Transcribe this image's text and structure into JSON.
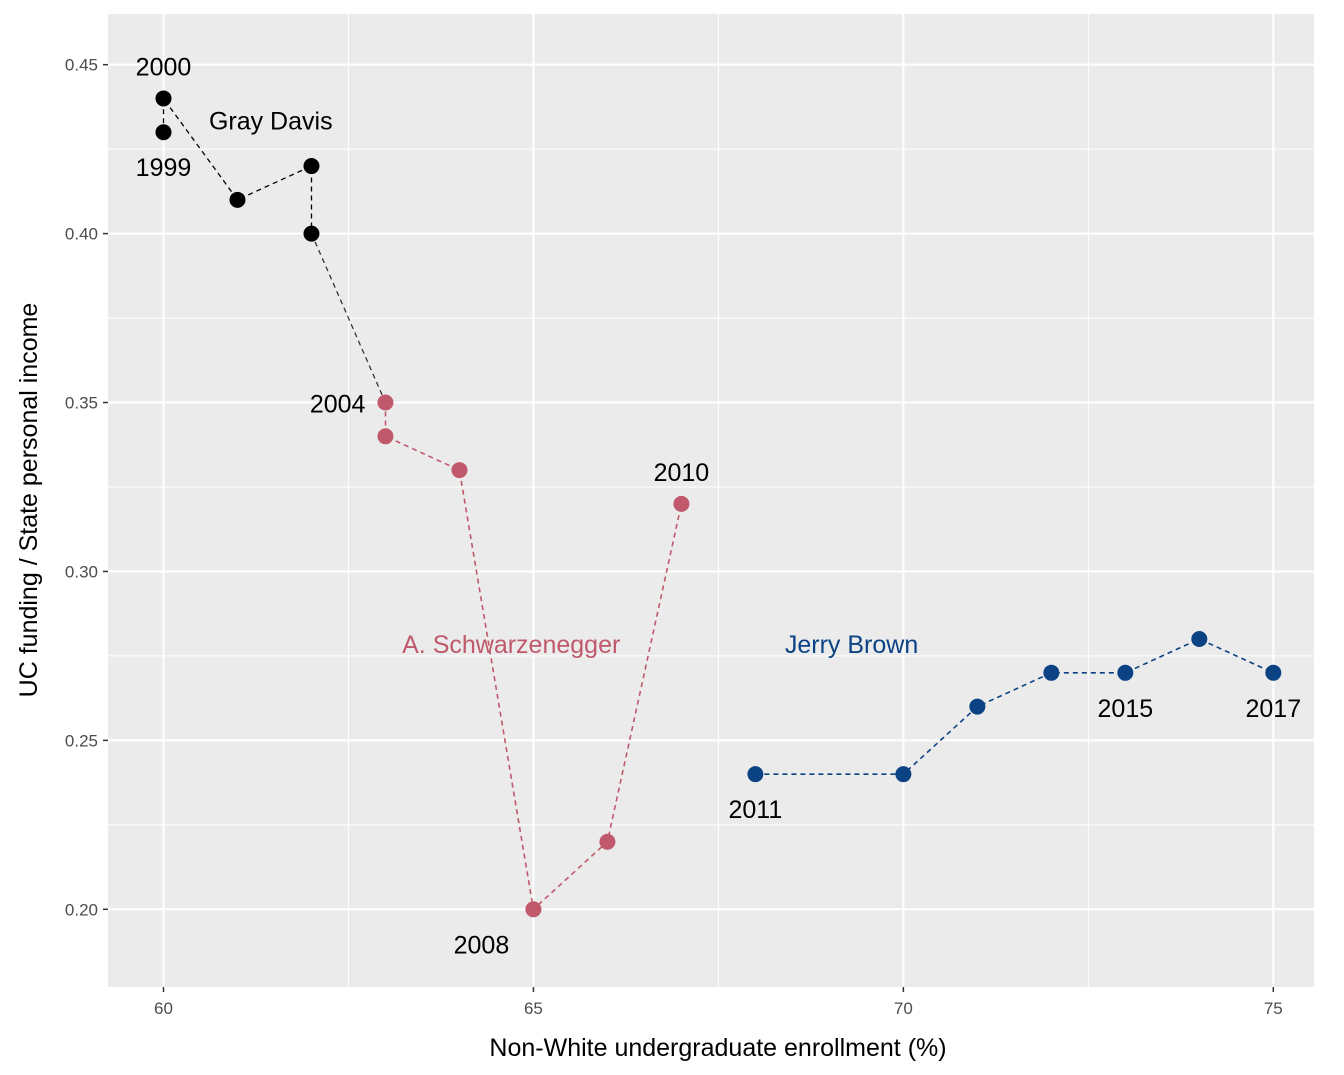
{
  "chart_data": {
    "type": "scatter",
    "title": "",
    "xlabel": "Non-White undergraduate enrollment (%)",
    "ylabel": "UC funding / State  personal income",
    "xlim": [
      59.25,
      75.55
    ],
    "ylim": [
      0.177,
      0.465
    ],
    "x_ticks": [
      60,
      65,
      70,
      75
    ],
    "x_tick_labels": [
      "60",
      "65",
      "70",
      "75"
    ],
    "y_ticks": [
      0.2,
      0.25,
      0.3,
      0.35,
      0.4,
      0.45
    ],
    "y_tick_labels": [
      "0.20",
      "0.25",
      "0.30",
      "0.35",
      "0.40",
      "0.45"
    ],
    "grid": true,
    "legend": "none",
    "series": [
      {
        "name": "Gray Davis",
        "color": "#000000",
        "points": [
          {
            "x": 60,
            "y": 0.43
          },
          {
            "x": 60,
            "y": 0.44
          },
          {
            "x": 61,
            "y": 0.41
          },
          {
            "x": 62,
            "y": 0.42
          },
          {
            "x": 62,
            "y": 0.4
          }
        ]
      },
      {
        "name": "A. Schwarzenegger",
        "color": "#c0596b",
        "points": [
          {
            "x": 63,
            "y": 0.35
          },
          {
            "x": 63,
            "y": 0.34
          },
          {
            "x": 64,
            "y": 0.33
          },
          {
            "x": 65,
            "y": 0.2
          },
          {
            "x": 66,
            "y": 0.22
          },
          {
            "x": 67,
            "y": 0.32
          }
        ]
      },
      {
        "name": "Jerry Brown",
        "color": "#0b4283",
        "points": [
          {
            "x": 68,
            "y": 0.24
          },
          {
            "x": 70,
            "y": 0.24
          },
          {
            "x": 71,
            "y": 0.26
          },
          {
            "x": 72,
            "y": 0.27
          },
          {
            "x": 73,
            "y": 0.27
          },
          {
            "x": 74,
            "y": 0.28
          },
          {
            "x": 75,
            "y": 0.27
          }
        ]
      }
    ],
    "connector": {
      "from": {
        "x": 62,
        "y": 0.4
      },
      "to": {
        "x": 63,
        "y": 0.35
      },
      "color": "#333333"
    },
    "year_labels": [
      {
        "text": "2000",
        "x": 60,
        "y": 0.44,
        "anchor": "above"
      },
      {
        "text": "1999",
        "x": 60,
        "y": 0.43,
        "anchor": "below"
      },
      {
        "text": "2004",
        "x": 63,
        "y": 0.35,
        "anchor": "left"
      },
      {
        "text": "2008",
        "x": 65,
        "y": 0.2,
        "anchor": "below-left"
      },
      {
        "text": "2010",
        "x": 67,
        "y": 0.32,
        "anchor": "above"
      },
      {
        "text": "2011",
        "x": 68,
        "y": 0.24,
        "anchor": "below"
      },
      {
        "text": "2015",
        "x": 73,
        "y": 0.27,
        "anchor": "below"
      },
      {
        "text": "2017",
        "x": 75,
        "y": 0.27,
        "anchor": "below"
      }
    ],
    "governor_labels": [
      {
        "text": "Gray Davis",
        "x": 61.45,
        "y": 0.4335,
        "color": "#000000"
      },
      {
        "text": "A. Schwarzenegger",
        "x": 64.7,
        "y": 0.2785,
        "color": "#c0596b"
      },
      {
        "text": "Jerry Brown",
        "x": 69.3,
        "y": 0.2785,
        "color": "#0b4283"
      }
    ]
  }
}
